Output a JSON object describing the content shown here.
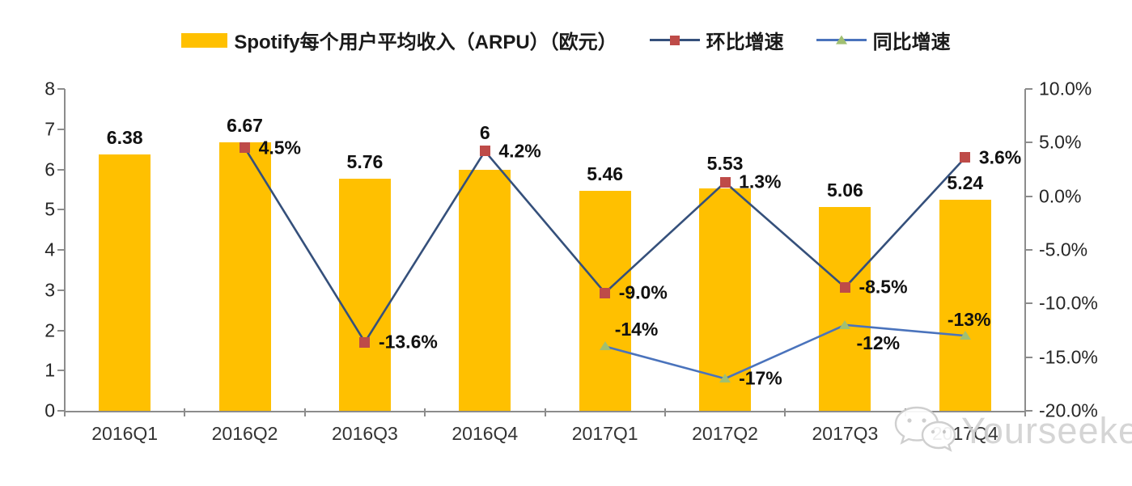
{
  "chart_data": {
    "type": "bar",
    "subtype": "bar-line-combo",
    "categories": [
      "2016Q1",
      "2016Q2",
      "2016Q3",
      "2016Q4",
      "2017Q1",
      "2017Q2",
      "2017Q3",
      "2017Q4"
    ],
    "series": [
      {
        "name": "Spotify每个用户平均收入（ARPU）（欧元）",
        "type": "bar",
        "axis": "left",
        "color": "#FFC000",
        "values": [
          6.38,
          6.67,
          5.76,
          6,
          5.46,
          5.53,
          5.06,
          5.24
        ],
        "labels": [
          "6.38",
          "6.67",
          "5.76",
          "6",
          "5.46",
          "5.53",
          "5.06",
          "5.24"
        ]
      },
      {
        "name": "环比增速",
        "type": "line",
        "axis": "right",
        "line_color": "#35507B",
        "marker": "square",
        "marker_color": "#BE4B48",
        "values": [
          null,
          4.5,
          -13.6,
          4.2,
          -9.0,
          1.3,
          -8.5,
          3.6
        ],
        "labels": [
          null,
          "4.5%",
          "-13.6%",
          "4.2%",
          "-9.0%",
          "1.3%",
          "-8.5%",
          "3.6%"
        ],
        "label_pos": [
          null,
          "right",
          "right",
          "right",
          "right",
          "right",
          "right",
          "right"
        ]
      },
      {
        "name": "同比增速",
        "type": "line",
        "axis": "right",
        "line_color": "#4A73BC",
        "marker": "triangle",
        "marker_color": "#A0BF72",
        "values": [
          null,
          null,
          null,
          null,
          -14,
          -17,
          -12,
          -13
        ],
        "labels": [
          null,
          null,
          null,
          null,
          "-14%",
          "-17%",
          "-12%",
          "-13%"
        ],
        "label_pos": [
          null,
          null,
          null,
          null,
          "above-right",
          "right",
          "below-right",
          "above"
        ]
      }
    ],
    "left_axis": {
      "min": 0,
      "max": 8,
      "step": 1,
      "ticks": [
        "8",
        "7",
        "6",
        "5",
        "4",
        "3",
        "2",
        "1",
        "0"
      ]
    },
    "right_axis": {
      "min": -20,
      "max": 10,
      "step": 5,
      "ticks": [
        "10.0%",
        "5.0%",
        "0.0%",
        "-5.0%",
        "-10.0%",
        "-15.0%",
        "-20.0%"
      ]
    },
    "legend_position": "top",
    "grid": false,
    "background": "#ffffff"
  },
  "watermark": {
    "text": "Yourseeker",
    "icon": "wechat-icon",
    "color": "#d2d2d2"
  }
}
